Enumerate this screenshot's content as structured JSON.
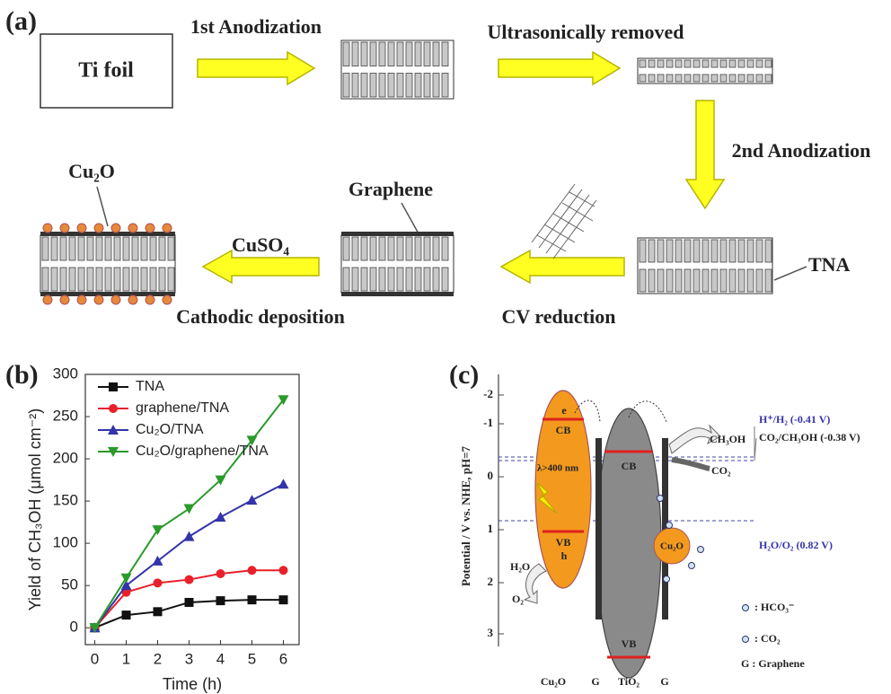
{
  "panel_a": {
    "label": "(a)",
    "ti_foil": "Ti foil",
    "step1": "1st Anodization",
    "step2": "Ultrasonically removed",
    "step3": "2nd Anodization",
    "tna": "TNA",
    "step4": "CV reduction",
    "graphene": "Graphene",
    "reagent": "CuSO₄",
    "step5": "Cathodic deposition",
    "cu2o": "Cu₂O"
  },
  "panel_b": {
    "label": "(b)"
  },
  "chart_data": {
    "type": "line",
    "xlabel": "Time (h)",
    "ylabel": "Yield of CH₃OH (μmol cm⁻²)",
    "x": [
      0,
      1,
      2,
      3,
      4,
      5,
      6
    ],
    "series": [
      {
        "name": "TNA",
        "color": "#111111",
        "marker": "square",
        "values": [
          0,
          15,
          19,
          30,
          32,
          33,
          33
        ]
      },
      {
        "name": "graphene/TNA",
        "color": "#e8202a",
        "marker": "circle",
        "values": [
          0,
          42,
          53,
          57,
          64,
          68,
          68
        ]
      },
      {
        "name": "Cu₂O/TNA",
        "color": "#3333aa",
        "marker": "triangle-up",
        "values": [
          0,
          50,
          79,
          108,
          131,
          151,
          170
        ]
      },
      {
        "name": "Cu₂O/graphene/TNA",
        "color": "#2a9a2a",
        "marker": "triangle-down",
        "values": [
          0,
          59,
          116,
          141,
          175,
          222,
          270
        ]
      }
    ],
    "xlim": [
      -0.3,
      6.5
    ],
    "ylim": [
      -20,
      300
    ],
    "xticks": [
      0,
      1,
      2,
      3,
      4,
      5,
      6
    ],
    "yticks": [
      0,
      50,
      100,
      150,
      200,
      250,
      300
    ],
    "legend": "upper left"
  },
  "panel_c": {
    "label": "(c)",
    "yaxis_label": "Potential / V vs. NHE, pH=7",
    "yticks": [
      -2,
      -1,
      0,
      1,
      2,
      3
    ],
    "h2_level": "H⁺/H₂ (-0.41 V)",
    "ch3oh_level": "CO₂/CH₃OH (-0.38 V)",
    "o2_level": "H₂O/O₂ (0.82 V)",
    "product": "CH₃OH",
    "reactant": "CO₂",
    "light": "λ>400 nm",
    "cb_cu2o": "CB",
    "vb_cu2o": "VB",
    "cb_tio2": "CB",
    "vb_tio2": "VB",
    "electron": "e",
    "hole": "h",
    "water": "H₂O",
    "oxygen": "O₂",
    "particle": "Cu₂O",
    "legend_hco3": ": HCO₃⁻",
    "legend_co2": ": CO₂",
    "legend_g": "G : Graphene",
    "bottom_cu2o": "Cu₂O",
    "bottom_g1": "G",
    "bottom_tio2": "TiO₂",
    "bottom_g2": "G"
  }
}
